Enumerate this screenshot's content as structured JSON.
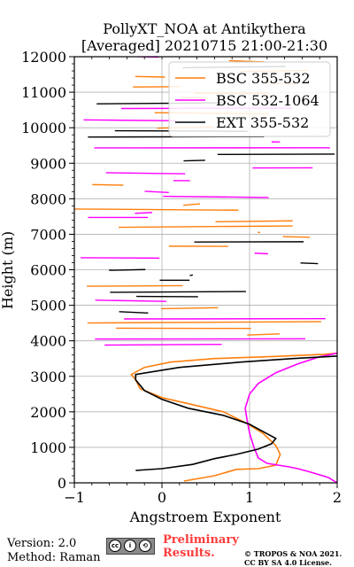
{
  "chart_data": {
    "type": "line",
    "title": "PollyXT_NOA at Antikythera",
    "subtitle": "[Averaged] 20210715 21:00-21:30",
    "xlabel": "Angstroem Exponent",
    "ylabel": "Height (m)",
    "xlim": [
      -1,
      2
    ],
    "ylim": [
      0,
      12000
    ],
    "xticks": [
      -1,
      0,
      1,
      2
    ],
    "yticks": [
      0,
      1000,
      2000,
      3000,
      4000,
      5000,
      6000,
      7000,
      8000,
      9000,
      10000,
      11000,
      12000
    ],
    "grid": true,
    "legend_position": "top-right",
    "series": [
      {
        "name": "BSC 355-532",
        "color": "#ff7f0e",
        "points": [
          [
            0.25,
            50
          ],
          [
            0.6,
            200
          ],
          [
            0.85,
            380
          ],
          [
            1.1,
            400
          ],
          [
            1.3,
            500
          ],
          [
            1.35,
            800
          ],
          [
            1.3,
            1050
          ],
          [
            1.15,
            1400
          ],
          [
            0.95,
            1700
          ],
          [
            0.7,
            2000
          ],
          [
            0.35,
            2200
          ],
          [
            0.0,
            2400
          ],
          [
            -0.25,
            2650
          ],
          [
            -0.3,
            2900
          ],
          [
            -0.35,
            3050
          ],
          [
            -0.2,
            3250
          ],
          [
            0.1,
            3400
          ],
          [
            0.6,
            3500
          ],
          [
            1.3,
            3560
          ],
          [
            1.85,
            3620
          ],
          [
            2.0,
            3650
          ]
        ]
      },
      {
        "name": "BSC 532-1064",
        "color": "#ff00ff",
        "points": [
          [
            2.0,
            0
          ],
          [
            1.9,
            150
          ],
          [
            1.7,
            300
          ],
          [
            1.55,
            400
          ],
          [
            1.45,
            450
          ],
          [
            1.2,
            550
          ],
          [
            1.1,
            700
          ],
          [
            1.05,
            1000
          ],
          [
            1.0,
            1400
          ],
          [
            0.97,
            1800
          ],
          [
            0.95,
            2100
          ],
          [
            1.0,
            2500
          ],
          [
            1.1,
            2800
          ],
          [
            1.3,
            3100
          ],
          [
            1.55,
            3350
          ],
          [
            1.8,
            3550
          ],
          [
            2.0,
            3650
          ]
        ]
      },
      {
        "name": "EXT 355-532",
        "color": "#000000",
        "points": [
          [
            -0.3,
            350
          ],
          [
            0.0,
            400
          ],
          [
            0.35,
            520
          ],
          [
            0.6,
            680
          ],
          [
            0.85,
            800
          ],
          [
            1.1,
            950
          ],
          [
            1.25,
            1100
          ],
          [
            1.3,
            1250
          ],
          [
            1.15,
            1450
          ],
          [
            1.0,
            1650
          ],
          [
            0.7,
            1900
          ],
          [
            0.3,
            2100
          ],
          [
            0.0,
            2350
          ],
          [
            -0.2,
            2600
          ],
          [
            -0.3,
            2900
          ],
          [
            -0.3,
            3050
          ],
          [
            0.2,
            3250
          ],
          [
            0.9,
            3400
          ],
          [
            1.5,
            3500
          ],
          [
            2.0,
            3570
          ]
        ]
      }
    ]
  },
  "footer": {
    "version": "Version: 2.0",
    "method": "Method: Raman",
    "preliminary_line1": "Preliminary",
    "preliminary_line2": "Results.",
    "copyright_line1": "© TROPOS & NOA 2021.",
    "copyright_line2": "CC BY SA 4.0 License."
  }
}
